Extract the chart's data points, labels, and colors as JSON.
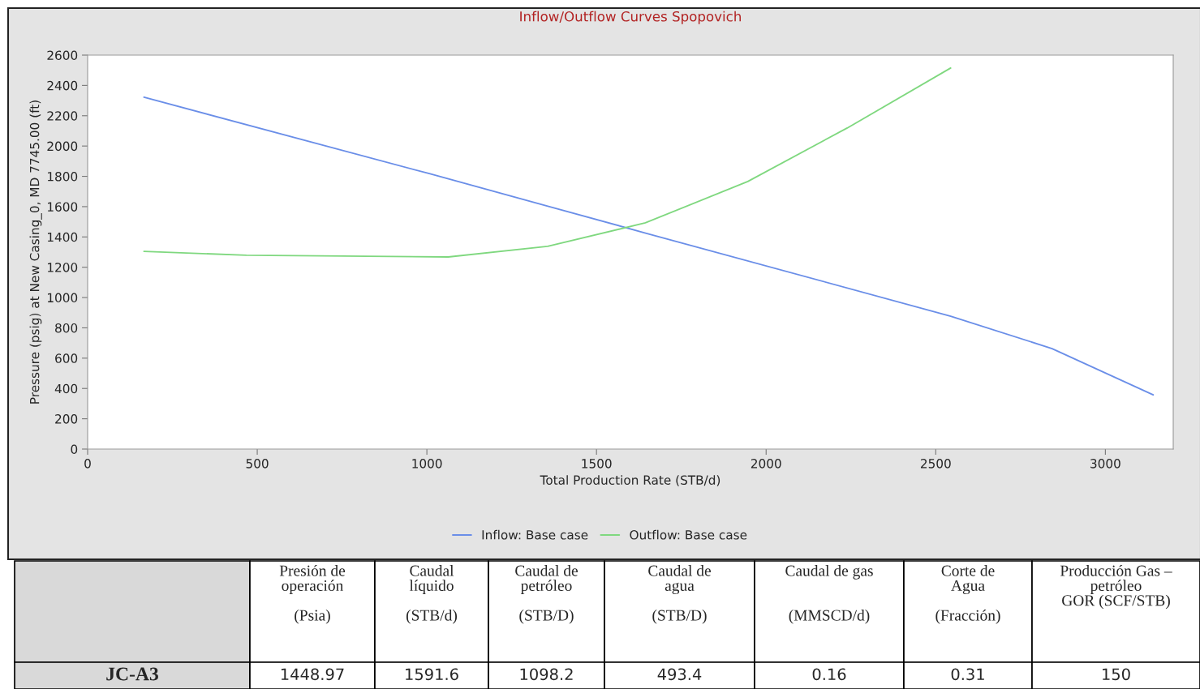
{
  "chart_data": {
    "type": "line",
    "title": "Inflow/Outflow Curves Spopovich",
    "xlabel": "Total Production Rate (STB/d)",
    "ylabel": "Pressure (psig) at New Casing_0, MD 7745.00 (ft)",
    "xlim": [
      0,
      3200
    ],
    "xticks": [
      0,
      500,
      1000,
      1500,
      2000,
      2500,
      3000
    ],
    "ylim": [
      0,
      2600
    ],
    "yticks": [
      0,
      200,
      400,
      600,
      800,
      1000,
      1200,
      1400,
      1600,
      1800,
      2000,
      2200,
      2400,
      2600
    ],
    "grid": false,
    "legend": "bottom",
    "marker": "none",
    "line_style": "solid",
    "series": [
      {
        "name": "Inflow: Base case",
        "color": "#6a8ee8",
        "x": [
          166,
          1005,
          1649,
          2544,
          2843,
          3141
        ],
        "values": [
          2322,
          1819,
          1423,
          877,
          663,
          358
        ]
      },
      {
        "name": "Outflow: Base case",
        "color": "#7fd87f",
        "x": [
          166,
          468,
          1063,
          1356,
          1644,
          1946,
          2239,
          2544
        ],
        "values": [
          1305,
          1279,
          1268,
          1338,
          1493,
          1766,
          2119,
          2515
        ]
      }
    ],
    "annotations": [
      "Presión de\noperación\n\n(Psia)",
      "Caudal\nlíquido\n\n(STB/d)",
      "Caudal de\npetróleo\n\n(STB/D)",
      "Caudal de\nagua\n\n(STB/D)",
      "Caudal de gas\n\n\n(MMSCD/d)",
      "Corte de\nAgua\n\n(Fracción)",
      "Producción Gas –\npetróleo\nGOR (SCF/STB)",
      "JC-A3",
      "1448.97",
      "1591.6",
      "1098.2",
      "493.4",
      "0.16",
      "0.31",
      "150"
    ]
  }
}
